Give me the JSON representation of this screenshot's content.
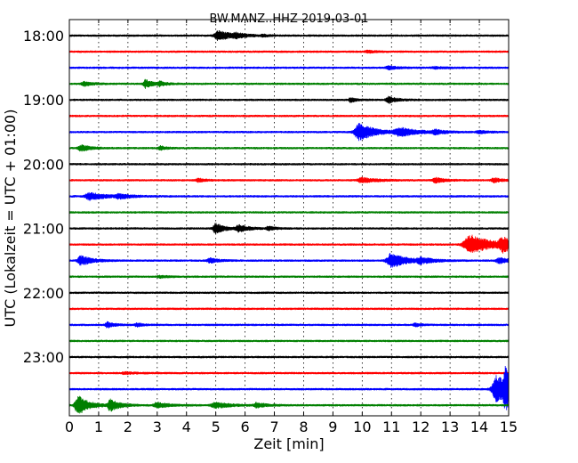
{
  "chart_data": {
    "type": "line",
    "title": "BW.MANZ..HHZ 2019-03-01",
    "xlabel": "Zeit  [min]",
    "ylabel": "UTC (Lokalzeit = UTC + 01:00)",
    "xlim": [
      0,
      15
    ],
    "x_ticks": [
      "0",
      "1",
      "2",
      "3",
      "4",
      "5",
      "6",
      "7",
      "8",
      "9",
      "10",
      "11",
      "12",
      "13",
      "14",
      "15"
    ],
    "y_ticks": [
      "18:00",
      "19:00",
      "20:00",
      "21:00",
      "22:00",
      "23:00"
    ],
    "grid": true,
    "trace_colors": [
      "#000000",
      "#ff0000",
      "#0000ff",
      "#008000"
    ],
    "traces": [
      {
        "start": "18:00",
        "events": [
          [
            5.1,
            0.45,
            0.7
          ],
          [
            5.7,
            0.3,
            0.25
          ],
          [
            6.6,
            0.2,
            0.15
          ]
        ]
      },
      {
        "start": "18:15",
        "events": [
          [
            10.2,
            0.3,
            0.15
          ]
        ]
      },
      {
        "start": "18:30",
        "events": [
          [
            10.9,
            0.3,
            0.25
          ],
          [
            12.5,
            0.4,
            0.12
          ]
        ]
      },
      {
        "start": "18:45",
        "events": [
          [
            0.5,
            0.3,
            0.3
          ],
          [
            2.6,
            0.25,
            0.6
          ],
          [
            3.1,
            0.2,
            0.3
          ]
        ]
      },
      {
        "start": "19:00",
        "events": [
          [
            9.6,
            0.2,
            0.3
          ],
          [
            10.9,
            0.3,
            0.45
          ]
        ]
      },
      {
        "start": "19:15",
        "events": []
      },
      {
        "start": "19:30",
        "events": [
          [
            9.9,
            0.5,
            1.3
          ],
          [
            11.3,
            0.6,
            0.6
          ],
          [
            12.5,
            0.3,
            0.3
          ],
          [
            14.0,
            0.3,
            0.2
          ]
        ]
      },
      {
        "start": "19:45",
        "events": [
          [
            0.4,
            0.3,
            0.45
          ],
          [
            3.1,
            0.2,
            0.3
          ]
        ]
      },
      {
        "start": "20:00",
        "events": []
      },
      {
        "start": "20:15",
        "events": [
          [
            4.4,
            0.25,
            0.25
          ],
          [
            10.0,
            0.5,
            0.35
          ],
          [
            12.5,
            0.3,
            0.4
          ],
          [
            14.5,
            0.3,
            0.3
          ]
        ]
      },
      {
        "start": "20:30",
        "events": [
          [
            0.7,
            0.5,
            0.55
          ],
          [
            1.7,
            0.4,
            0.3
          ]
        ]
      },
      {
        "start": "20:45",
        "events": []
      },
      {
        "start": "21:00",
        "events": [
          [
            5.0,
            0.3,
            0.75
          ],
          [
            5.8,
            0.35,
            0.45
          ],
          [
            6.8,
            0.2,
            0.3
          ]
        ]
      },
      {
        "start": "21:15",
        "events": [
          [
            13.7,
            0.7,
            1.4
          ],
          [
            14.8,
            0.4,
            0.9
          ]
        ]
      },
      {
        "start": "21:30",
        "events": [
          [
            0.4,
            0.35,
            0.75
          ],
          [
            4.8,
            0.3,
            0.35
          ],
          [
            11.0,
            0.5,
            1.1
          ],
          [
            12.0,
            0.4,
            0.35
          ],
          [
            14.7,
            0.4,
            0.4
          ]
        ]
      },
      {
        "start": "21:45",
        "events": [
          [
            3.1,
            0.3,
            0.15
          ]
        ]
      },
      {
        "start": "22:00",
        "events": []
      },
      {
        "start": "22:15",
        "events": []
      },
      {
        "start": "22:30",
        "events": [
          [
            1.3,
            0.2,
            0.45
          ],
          [
            2.3,
            0.2,
            0.25
          ],
          [
            11.8,
            0.2,
            0.25
          ]
        ]
      },
      {
        "start": "22:45",
        "events": []
      },
      {
        "start": "23:00",
        "events": []
      },
      {
        "start": "23:15",
        "events": [
          [
            1.9,
            0.3,
            0.15
          ]
        ]
      },
      {
        "start": "23:30",
        "events": [
          [
            14.6,
            0.5,
            2.0
          ],
          [
            14.9,
            0.3,
            2.4
          ]
        ]
      },
      {
        "start": "23:45",
        "events": [
          [
            0.3,
            0.35,
            1.5
          ],
          [
            1.4,
            0.3,
            0.85
          ],
          [
            3.0,
            0.4,
            0.4
          ],
          [
            5.0,
            0.5,
            0.4
          ],
          [
            6.4,
            0.3,
            0.35
          ]
        ]
      }
    ]
  }
}
